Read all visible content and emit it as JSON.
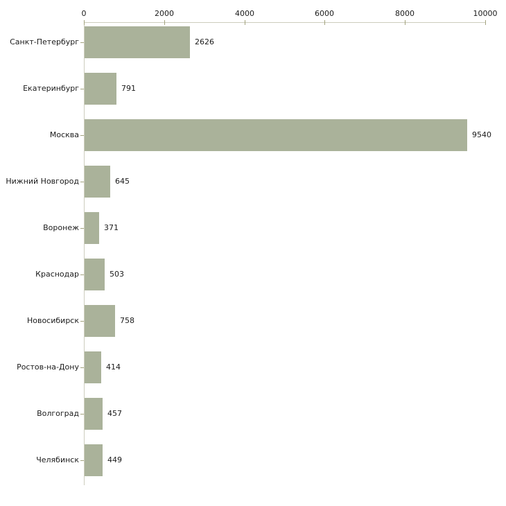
{
  "chart_data": {
    "type": "bar",
    "orientation": "horizontal",
    "title": "",
    "xlabel": "",
    "ylabel": "",
    "grid": false,
    "legend": false,
    "xlim": [
      0,
      10000
    ],
    "x_ticks": [
      0,
      2000,
      4000,
      6000,
      8000,
      10000
    ],
    "categories": [
      "Санкт-Петербург",
      "Екатеринбург",
      "Москва",
      "Нижний Новгород",
      "Воронеж",
      "Краснодар",
      "Новосибирск",
      "Ростов-на-Дону",
      "Волгоград",
      "Челябинск"
    ],
    "values": [
      2626,
      791,
      9540,
      645,
      371,
      503,
      758,
      414,
      457,
      449
    ],
    "value_labels": [
      "2626",
      "791",
      "9540",
      "645",
      "371",
      "503",
      "758",
      "414",
      "457",
      "449"
    ],
    "colors": {
      "bar": "#aab29a",
      "tick": "#a3a37e",
      "axis": "#cdcdbd",
      "text": "#1a1a1a",
      "background": "#ffffff"
    }
  }
}
